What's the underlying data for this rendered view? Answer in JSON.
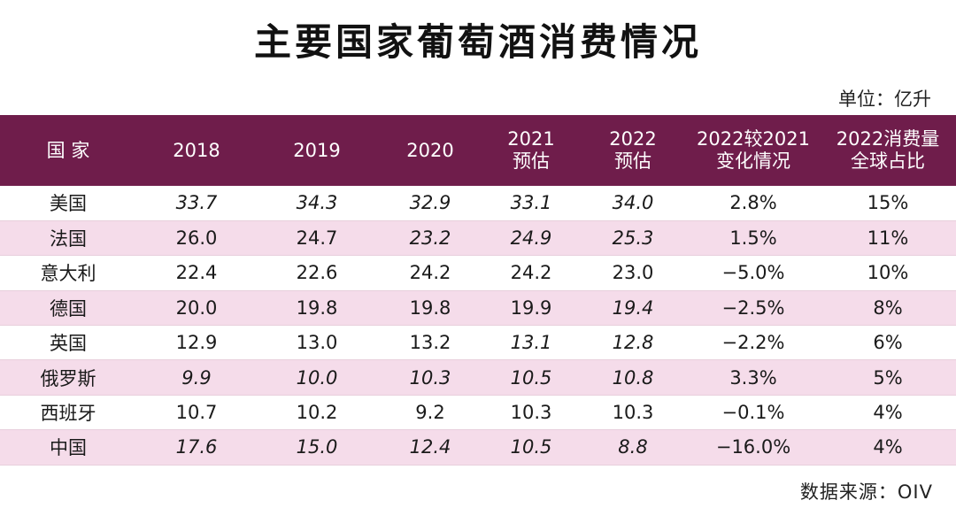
{
  "title": "主要国家葡萄酒消费情况",
  "unit": "单位：亿升",
  "source": "数据来源：OIV",
  "chart_data": {
    "type": "table",
    "columns": [
      [
        "国 家"
      ],
      [
        "2018"
      ],
      [
        "2019"
      ],
      [
        "2020"
      ],
      [
        "2021",
        "预估"
      ],
      [
        "2022",
        "预估"
      ],
      [
        "2022较2021",
        "变化情况"
      ],
      [
        "2022消费量",
        "全球占比"
      ]
    ],
    "rows": [
      {
        "country": "美国",
        "values": [
          "33.7",
          "34.3",
          "32.9",
          "33.1",
          "34.0"
        ],
        "change": "2.8%",
        "share": "15%",
        "italic": [
          true,
          true,
          true,
          true,
          true
        ]
      },
      {
        "country": "法国",
        "values": [
          "26.0",
          "24.7",
          "23.2",
          "24.9",
          "25.3"
        ],
        "change": "1.5%",
        "share": "11%",
        "italic": [
          false,
          false,
          true,
          true,
          true
        ]
      },
      {
        "country": "意大利",
        "values": [
          "22.4",
          "22.6",
          "24.2",
          "24.2",
          "23.0"
        ],
        "change": "−5.0%",
        "share": "10%",
        "italic": [
          false,
          false,
          false,
          false,
          false
        ]
      },
      {
        "country": "德国",
        "values": [
          "20.0",
          "19.8",
          "19.8",
          "19.9",
          "19.4"
        ],
        "change": "−2.5%",
        "share": "8%",
        "italic": [
          false,
          false,
          false,
          false,
          true
        ]
      },
      {
        "country": "英国",
        "values": [
          "12.9",
          "13.0",
          "13.2",
          "13.1",
          "12.8"
        ],
        "change": "−2.2%",
        "share": "6%",
        "italic": [
          false,
          false,
          false,
          true,
          true
        ]
      },
      {
        "country": "俄罗斯",
        "values": [
          "9.9",
          "10.0",
          "10.3",
          "10.5",
          "10.8"
        ],
        "change": "3.3%",
        "share": "5%",
        "italic": [
          true,
          true,
          true,
          true,
          true
        ]
      },
      {
        "country": "西班牙",
        "values": [
          "10.7",
          "10.2",
          "9.2",
          "10.3",
          "10.3"
        ],
        "change": "−0.1%",
        "share": "4%",
        "italic": [
          false,
          false,
          false,
          false,
          false
        ]
      },
      {
        "country": "中国",
        "values": [
          "17.6",
          "15.0",
          "12.4",
          "10.5",
          "8.8"
        ],
        "change": "−16.0%",
        "share": "4%",
        "italic": [
          true,
          true,
          true,
          true,
          true
        ]
      }
    ],
    "colors": {
      "header_bg": "#6f1d4b",
      "stripe": "#f5dcea"
    }
  }
}
